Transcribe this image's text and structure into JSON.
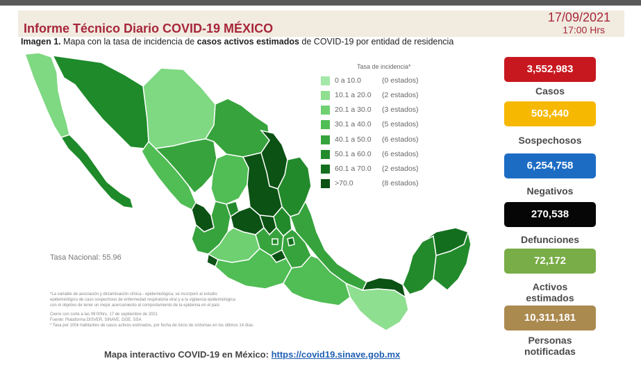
{
  "header": {
    "title": "Informe Técnico Diario COVID-19 MÉXICO",
    "date": "17/09/2021",
    "time": "17:00 Hrs"
  },
  "subtitle": {
    "prefix": "Imagen 1.",
    "part1": " Mapa con la tasa de incidencia de ",
    "bold": "casos activos estimados",
    "part2": " de COVID-19 por entidad de residencia"
  },
  "legend": {
    "title": "Tasa de incidencia*",
    "rows": [
      {
        "range": "0   a  10.0",
        "count": "(0 estados)",
        "color": "#a3e8a8"
      },
      {
        "range": "10.1 a  20.0",
        "count": "(2 estados)",
        "color": "#8fdf90"
      },
      {
        "range": "20.1 a  30.0",
        "count": "(3 estados)",
        "color": "#6fd072"
      },
      {
        "range": "30.1 a  40.0",
        "count": "(5 estados)",
        "color": "#50bd55"
      },
      {
        "range": "40.1 a  50.0",
        "count": "(6 estados)",
        "color": "#37a33d"
      },
      {
        "range": "50.1 a  60.0",
        "count": "(6 estados)",
        "color": "#238a2c"
      },
      {
        "range": "60.1 a  70.0",
        "count": "(2 estados)",
        "color": "#136f1e"
      },
      {
        "range": ">70.0",
        "count": "(8 estados)",
        "color": "#0b5214"
      }
    ]
  },
  "map": {
    "tasa_nacional": "Tasa Nacional: 55.96",
    "notes": [
      "*La variable de asociación y dictaminación clínica - epidemiológica, se incorporó al estudio",
      "epidemiológico de caso sospechoso de enfermedad respiratoria viral y a la vigilancia epidemiológica",
      "con el objetivo de tener un mejor acercamiento al comportamiento de la epidemia en el país",
      "",
      "Cierre con corte a las 09:00hrs, 17 de septiembre de 2021",
      "Fuente: Plataforma DISVER, SINAVE, DGE, SSA",
      "* Tasa por 100k habitantes de casos activos estimados, por fecha de inicio de síntomas en los últimos 14 días."
    ]
  },
  "stats": [
    {
      "value": "3,552,983",
      "label": "Casos",
      "color": "#c8181f"
    },
    {
      "value": "503,440",
      "label": "Sospechosos",
      "color": "#f6b800"
    },
    {
      "value": "6,254,758",
      "label": "Negativos",
      "color": "#1d6cc4"
    },
    {
      "value": "270,538",
      "label": "Defunciones",
      "color": "#060606"
    },
    {
      "value": "72,172",
      "label": "Activos estimados",
      "color": "#79ad47"
    },
    {
      "value": "10,311,181",
      "label": "Personas notificadas",
      "color": "#ab8a4f"
    }
  ],
  "footer": {
    "text": "Mapa interactivo COVID-19 en México: ",
    "link": "https://covid19.sinave.gob.mx"
  }
}
